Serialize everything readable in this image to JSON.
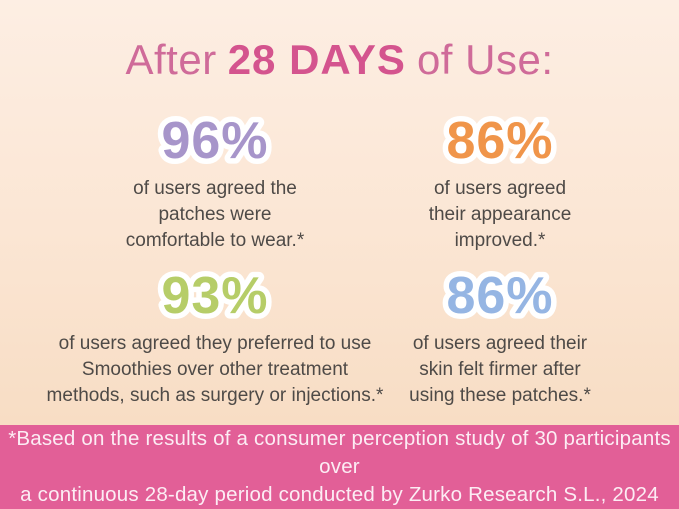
{
  "title": {
    "prefix": "After",
    "highlight": "28 DAYS",
    "suffix": "of Use:"
  },
  "stats": [
    {
      "value": "96%",
      "color": "#a795ca",
      "lines": [
        "of users agreed the",
        "patches were",
        "comfortable to wear.*"
      ]
    },
    {
      "value": "86%",
      "color": "#f0954a",
      "lines": [
        "of users agreed",
        "their appearance",
        "improved.*"
      ]
    },
    {
      "value": "93%",
      "color": "#b6cd68",
      "lines": [
        "of users agreed they preferred to use",
        "Smoothies over other treatment",
        "methods, such as surgery or injections.*"
      ]
    },
    {
      "value": "86%",
      "color": "#95b5e3",
      "lines": [
        "of users agreed their",
        "skin felt firmer after",
        "using these patches.*"
      ]
    }
  ],
  "footer": {
    "lines": [
      "*Based on the results of a consumer perception study of 30 participants over",
      "a continuous 28-day period conducted by Zurko Research S.L., 2024"
    ]
  },
  "colors": {
    "background_top": "#fdeee3",
    "background_bottom": "#f6d9bd",
    "title_pink": "#cf6b99",
    "title_highlight_pink": "#d4548e",
    "body_text": "#4e4a47",
    "footer_background": "#e25f97",
    "footer_text": "#fcedf4",
    "stat_purple": "#a795ca",
    "stat_orange": "#f0954a",
    "stat_green": "#b6cd68",
    "stat_blue": "#95b5e3"
  },
  "chart_data": {
    "type": "table",
    "title": "After 28 DAYS of Use:",
    "categories": [
      "patches were comfortable to wear",
      "appearance improved",
      "preferred to use Smoothies over other treatment methods, such as surgery or injections",
      "skin felt firmer after using these patches"
    ],
    "values": [
      96,
      86,
      93,
      86
    ],
    "unit": "%",
    "sample_size": 30,
    "study_duration_days": 28,
    "source_note": "*Based on the results of a consumer perception study of 30 participants over a continuous 28-day period conducted by Zurko Research S.L., 2024"
  }
}
